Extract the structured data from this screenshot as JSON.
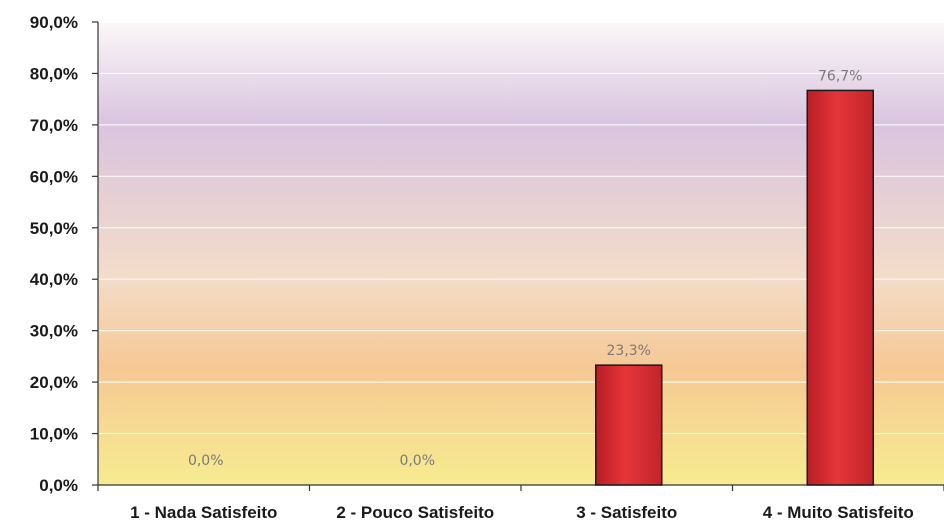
{
  "chart_data": {
    "type": "bar",
    "categories": [
      "1 - Nada Satisfeito",
      "2 - Pouco Satisfeito",
      "3 - Satisfeito",
      "4 - Muito Satisfeito"
    ],
    "values": [
      0.0,
      0.0,
      23.3,
      76.7
    ],
    "value_labels": [
      "0,0%",
      "0,0%",
      "23,3%",
      "76,7%"
    ],
    "y_ticks": [
      0,
      10,
      20,
      30,
      40,
      50,
      60,
      70,
      80,
      90
    ],
    "y_tick_labels": [
      "0,0%",
      "10,0%",
      "20,0%",
      "30,0%",
      "40,0%",
      "50,0%",
      "60,0%",
      "70,0%",
      "80,0%",
      "90,0%"
    ],
    "ylim": [
      0,
      90
    ],
    "grid": true,
    "title": "",
    "xlabel": "",
    "ylabel": "",
    "colors": {
      "bar": "#d42a2f",
      "bar_edge": "#1a1a1a",
      "bg_top": "#f6f1f8",
      "bg_mid": "#d9c3de",
      "bg_low": "#f3c79a",
      "bg_bottom": "#f7ec8f"
    }
  }
}
